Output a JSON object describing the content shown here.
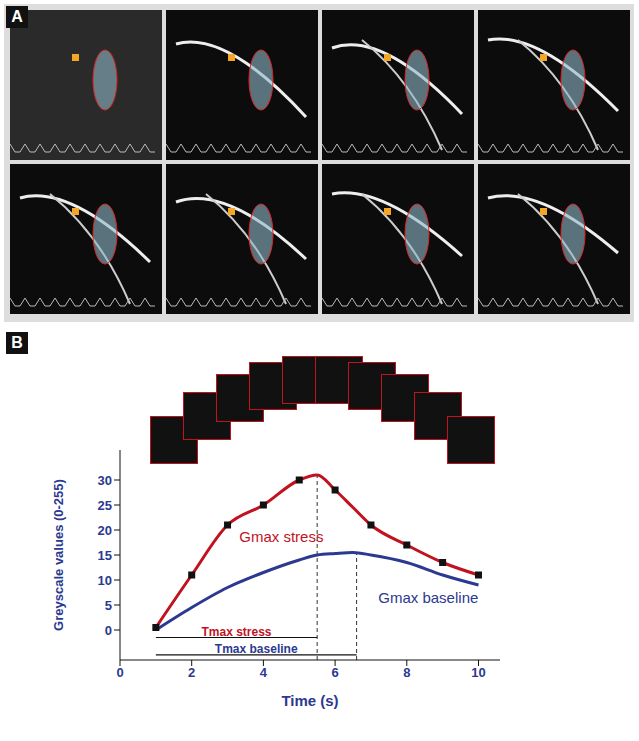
{
  "panel_labels": [
    "A",
    "B"
  ],
  "chart_data": {
    "type": "line",
    "x_label": "Time (s)",
    "y_label": "Greyscale values (0-255)",
    "x": [
      1,
      2,
      3,
      4,
      5,
      5.5,
      6,
      6.5,
      7,
      8,
      9,
      10
    ],
    "series": [
      {
        "name": "stress",
        "color": "#c1121f",
        "marker": "square",
        "values": [
          0.5,
          11,
          21,
          25,
          30,
          31,
          28,
          24.5,
          21,
          17,
          13.5,
          11
        ],
        "gmax": 31,
        "tmax": 5.5,
        "gmax_label": "Gmax stress",
        "tmax_label": "Tmax stress"
      },
      {
        "name": "baseline",
        "color": "#2b3990",
        "marker": "none",
        "values": [
          0,
          4.5,
          8.5,
          11.5,
          14,
          15,
          15.3,
          15.5,
          15,
          13.5,
          11,
          9
        ],
        "gmax": 15.5,
        "tmax": 6.6,
        "gmax_label": "Gmax baseline",
        "tmax_label": "Tmax baseline"
      }
    ],
    "xlim": [
      0,
      10.6
    ],
    "xticks": [
      0,
      2,
      4,
      6,
      8,
      10
    ],
    "ylim": [
      -6,
      36
    ],
    "yticks": [
      0,
      5,
      10,
      15,
      20,
      25,
      30
    ],
    "grid": false,
    "tick_labels": true
  }
}
